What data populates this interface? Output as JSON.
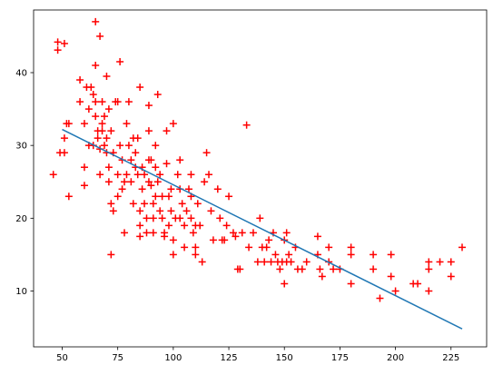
{
  "chart_data": {
    "type": "scatter",
    "title": "",
    "xlabel": "",
    "ylabel": "",
    "xlim": [
      37,
      536
    ],
    "ylim": [
      2.5,
      48.2
    ],
    "grid": false,
    "xticks": [
      50,
      75,
      100,
      125,
      150,
      175,
      200,
      225
    ],
    "yticks": [
      10,
      20,
      30,
      40
    ],
    "xtick_labels": [
      "50",
      "75",
      "100",
      "125",
      "150",
      "175",
      "200",
      "225"
    ],
    "ytick_labels": [
      "10",
      "20",
      "30",
      "40"
    ],
    "series": [
      {
        "kind": "scatter",
        "marker": "+",
        "color": "#ff0000",
        "points": [
          [
            46,
            26
          ],
          [
            48,
            43.1
          ],
          [
            48,
            44.2
          ],
          [
            49,
            29
          ],
          [
            51,
            29
          ],
          [
            51,
            44
          ],
          [
            52,
            33
          ],
          [
            53,
            33
          ],
          [
            53,
            23
          ],
          [
            51,
            31
          ],
          [
            58,
            39
          ],
          [
            58,
            36
          ],
          [
            60,
            24.5
          ],
          [
            60,
            27
          ],
          [
            60,
            33
          ],
          [
            61,
            38
          ],
          [
            62,
            35
          ],
          [
            62,
            30
          ],
          [
            63,
            38
          ],
          [
            64,
            37
          ],
          [
            64,
            30
          ],
          [
            65,
            47
          ],
          [
            65,
            41
          ],
          [
            65,
            36
          ],
          [
            65,
            34
          ],
          [
            66,
            32
          ],
          [
            66,
            31
          ],
          [
            67,
            45
          ],
          [
            67,
            29.5
          ],
          [
            67,
            26
          ],
          [
            68,
            36
          ],
          [
            68,
            33
          ],
          [
            68,
            32
          ],
          [
            69,
            34
          ],
          [
            69,
            30
          ],
          [
            70,
            39.5
          ],
          [
            70,
            31
          ],
          [
            70,
            29
          ],
          [
            71,
            35
          ],
          [
            71,
            27
          ],
          [
            71,
            25
          ],
          [
            72,
            15
          ],
          [
            72,
            22
          ],
          [
            72,
            32
          ],
          [
            73,
            21
          ],
          [
            73,
            29
          ],
          [
            74,
            36
          ],
          [
            75,
            36
          ],
          [
            75,
            26
          ],
          [
            75,
            23
          ],
          [
            76,
            41.5
          ],
          [
            76,
            30
          ],
          [
            77,
            28
          ],
          [
            77,
            24
          ],
          [
            78,
            25
          ],
          [
            78,
            18
          ],
          [
            79,
            26
          ],
          [
            79,
            33
          ],
          [
            80,
            36
          ],
          [
            80,
            30
          ],
          [
            81,
            28
          ],
          [
            81,
            25
          ],
          [
            82,
            31
          ],
          [
            82,
            22
          ],
          [
            83,
            27
          ],
          [
            83,
            29
          ],
          [
            84,
            31
          ],
          [
            84,
            26
          ],
          [
            85,
            38
          ],
          [
            85,
            21
          ],
          [
            85,
            19
          ],
          [
            85,
            17.5
          ],
          [
            86,
            27
          ],
          [
            86,
            24
          ],
          [
            87,
            26
          ],
          [
            87,
            22
          ],
          [
            88,
            20
          ],
          [
            88,
            18
          ],
          [
            89,
            35.5
          ],
          [
            89,
            32
          ],
          [
            89,
            28
          ],
          [
            89,
            25
          ],
          [
            90,
            28
          ],
          [
            90,
            24.5
          ],
          [
            91,
            22
          ],
          [
            91,
            20
          ],
          [
            91,
            18
          ],
          [
            92,
            27
          ],
          [
            92,
            30
          ],
          [
            92,
            23
          ],
          [
            93,
            25
          ],
          [
            93,
            37
          ],
          [
            94,
            21
          ],
          [
            94,
            26
          ],
          [
            95,
            23
          ],
          [
            95,
            20
          ],
          [
            96,
            18
          ],
          [
            96,
            17.5
          ],
          [
            97,
            32
          ],
          [
            97,
            27.5
          ],
          [
            98,
            19
          ],
          [
            98,
            23
          ],
          [
            99,
            24
          ],
          [
            99,
            21
          ],
          [
            100,
            33
          ],
          [
            100,
            17
          ],
          [
            100,
            15
          ],
          [
            101,
            20
          ],
          [
            102,
            26
          ],
          [
            103,
            28
          ],
          [
            103,
            24
          ],
          [
            103,
            20
          ],
          [
            104,
            22
          ],
          [
            105,
            19
          ],
          [
            105,
            16
          ],
          [
            106,
            21
          ],
          [
            107,
            24
          ],
          [
            108,
            26
          ],
          [
            108,
            23
          ],
          [
            108,
            20
          ],
          [
            109,
            18
          ],
          [
            110,
            19
          ],
          [
            110,
            16
          ],
          [
            110,
            15
          ],
          [
            111,
            22
          ],
          [
            112,
            19
          ],
          [
            113,
            14
          ],
          [
            114,
            25
          ],
          [
            115,
            29
          ],
          [
            116,
            26
          ],
          [
            117,
            21
          ],
          [
            118,
            17
          ],
          [
            120,
            24
          ],
          [
            121,
            20
          ],
          [
            122,
            17
          ],
          [
            123,
            17
          ],
          [
            124,
            19
          ],
          [
            125,
            23
          ],
          [
            127,
            18
          ],
          [
            128,
            17.5
          ],
          [
            129,
            13
          ],
          [
            130,
            13
          ],
          [
            131,
            18
          ],
          [
            133,
            32.8
          ],
          [
            134,
            16
          ],
          [
            136,
            18
          ],
          [
            138,
            14
          ],
          [
            139,
            20
          ],
          [
            140,
            16
          ],
          [
            141,
            14
          ],
          [
            142,
            16
          ],
          [
            143,
            17
          ],
          [
            144,
            14
          ],
          [
            145,
            18
          ],
          [
            146,
            15
          ],
          [
            147,
            14
          ],
          [
            148,
            13
          ],
          [
            149,
            14
          ],
          [
            150,
            17
          ],
          [
            150,
            11
          ],
          [
            151,
            18
          ],
          [
            151,
            14
          ],
          [
            152,
            15
          ],
          [
            153,
            14
          ],
          [
            155,
            16
          ],
          [
            156,
            13
          ],
          [
            158,
            13
          ],
          [
            160,
            14
          ],
          [
            165,
            17.5
          ],
          [
            165,
            15
          ],
          [
            166,
            13
          ],
          [
            167,
            12
          ],
          [
            170,
            14
          ],
          [
            170,
            16
          ],
          [
            172,
            13
          ],
          [
            175,
            13
          ],
          [
            180,
            15
          ],
          [
            180,
            16
          ],
          [
            180,
            11
          ],
          [
            190,
            13
          ],
          [
            190,
            15
          ],
          [
            193,
            9
          ],
          [
            198,
            15
          ],
          [
            198,
            12
          ],
          [
            200,
            10
          ],
          [
            208,
            11
          ],
          [
            210,
            11
          ],
          [
            215,
            10
          ],
          [
            215,
            13
          ],
          [
            215,
            14
          ],
          [
            220,
            14
          ],
          [
            225,
            14
          ],
          [
            225,
            12
          ],
          [
            230,
            16
          ]
        ]
      },
      {
        "kind": "line",
        "color": "#1f77b4",
        "points": [
          [
            50,
            32.2
          ],
          [
            230,
            4.8
          ]
        ]
      }
    ]
  }
}
